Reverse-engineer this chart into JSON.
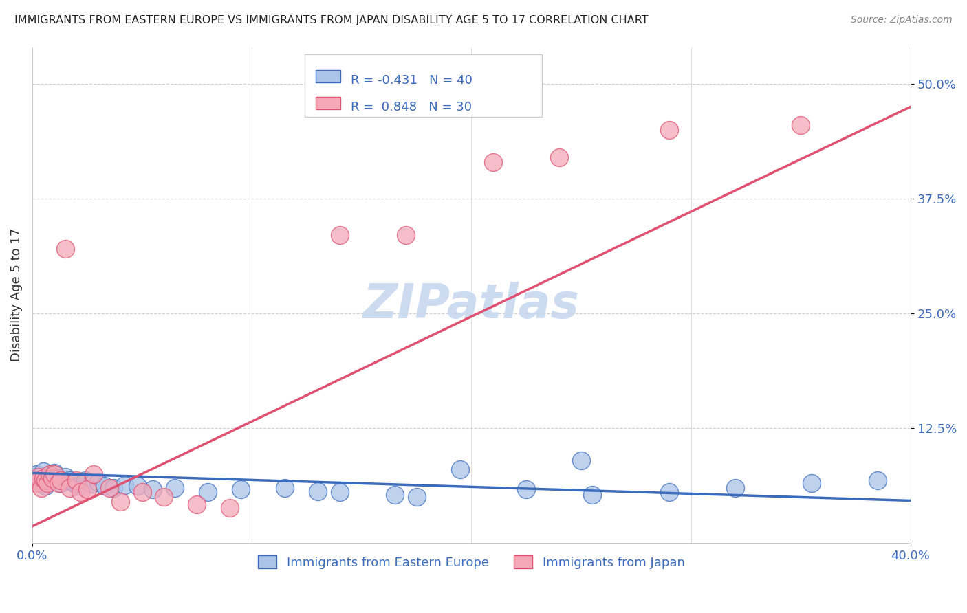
{
  "title": "IMMIGRANTS FROM EASTERN EUROPE VS IMMIGRANTS FROM JAPAN DISABILITY AGE 5 TO 17 CORRELATION CHART",
  "source": "Source: ZipAtlas.com",
  "ylabel": "Disability Age 5 to 17",
  "xlim": [
    0.0,
    0.4
  ],
  "ylim": [
    0.0,
    0.54
  ],
  "background_color": "#ffffff",
  "grid_color": "#d0d0d0",
  "color_blue": "#aac4e8",
  "color_pink": "#f4a8b8",
  "line_color_blue": "#3a6bbd",
  "line_color_pink": "#e05070",
  "watermark": "ZIPatlas",
  "blue_scatter": [
    [
      0.001,
      0.072
    ],
    [
      0.002,
      0.075
    ],
    [
      0.003,
      0.068
    ],
    [
      0.004,
      0.065
    ],
    [
      0.005,
      0.078
    ],
    [
      0.006,
      0.062
    ],
    [
      0.007,
      0.07
    ],
    [
      0.008,
      0.074
    ],
    [
      0.009,
      0.068
    ],
    [
      0.01,
      0.076
    ],
    [
      0.012,
      0.07
    ],
    [
      0.013,
      0.065
    ],
    [
      0.015,
      0.072
    ],
    [
      0.017,
      0.068
    ],
    [
      0.019,
      0.065
    ],
    [
      0.021,
      0.062
    ],
    [
      0.024,
      0.068
    ],
    [
      0.027,
      0.064
    ],
    [
      0.03,
      0.066
    ],
    [
      0.033,
      0.062
    ],
    [
      0.037,
      0.06
    ],
    [
      0.042,
      0.063
    ],
    [
      0.048,
      0.062
    ],
    [
      0.055,
      0.058
    ],
    [
      0.065,
      0.06
    ],
    [
      0.08,
      0.055
    ],
    [
      0.095,
      0.058
    ],
    [
      0.115,
      0.06
    ],
    [
      0.14,
      0.055
    ],
    [
      0.165,
      0.052
    ],
    [
      0.195,
      0.08
    ],
    [
      0.225,
      0.058
    ],
    [
      0.255,
      0.052
    ],
    [
      0.29,
      0.055
    ],
    [
      0.32,
      0.06
    ],
    [
      0.355,
      0.065
    ],
    [
      0.385,
      0.068
    ],
    [
      0.25,
      0.09
    ],
    [
      0.175,
      0.05
    ],
    [
      0.13,
      0.056
    ]
  ],
  "pink_scatter": [
    [
      0.001,
      0.068
    ],
    [
      0.002,
      0.065
    ],
    [
      0.003,
      0.072
    ],
    [
      0.004,
      0.06
    ],
    [
      0.005,
      0.07
    ],
    [
      0.006,
      0.068
    ],
    [
      0.007,
      0.065
    ],
    [
      0.008,
      0.075
    ],
    [
      0.009,
      0.07
    ],
    [
      0.01,
      0.075
    ],
    [
      0.012,
      0.065
    ],
    [
      0.013,
      0.068
    ],
    [
      0.015,
      0.32
    ],
    [
      0.017,
      0.06
    ],
    [
      0.02,
      0.068
    ],
    [
      0.022,
      0.055
    ],
    [
      0.025,
      0.058
    ],
    [
      0.028,
      0.075
    ],
    [
      0.035,
      0.06
    ],
    [
      0.04,
      0.045
    ],
    [
      0.05,
      0.055
    ],
    [
      0.06,
      0.05
    ],
    [
      0.075,
      0.042
    ],
    [
      0.09,
      0.038
    ],
    [
      0.14,
      0.335
    ],
    [
      0.17,
      0.335
    ],
    [
      0.21,
      0.415
    ],
    [
      0.24,
      0.42
    ],
    [
      0.29,
      0.45
    ],
    [
      0.35,
      0.455
    ]
  ],
  "blue_line_x": [
    0.0,
    0.4
  ],
  "blue_line_y": [
    0.076,
    0.046
  ],
  "pink_line_x": [
    0.0,
    0.4
  ],
  "pink_line_y": [
    0.018,
    0.475
  ]
}
